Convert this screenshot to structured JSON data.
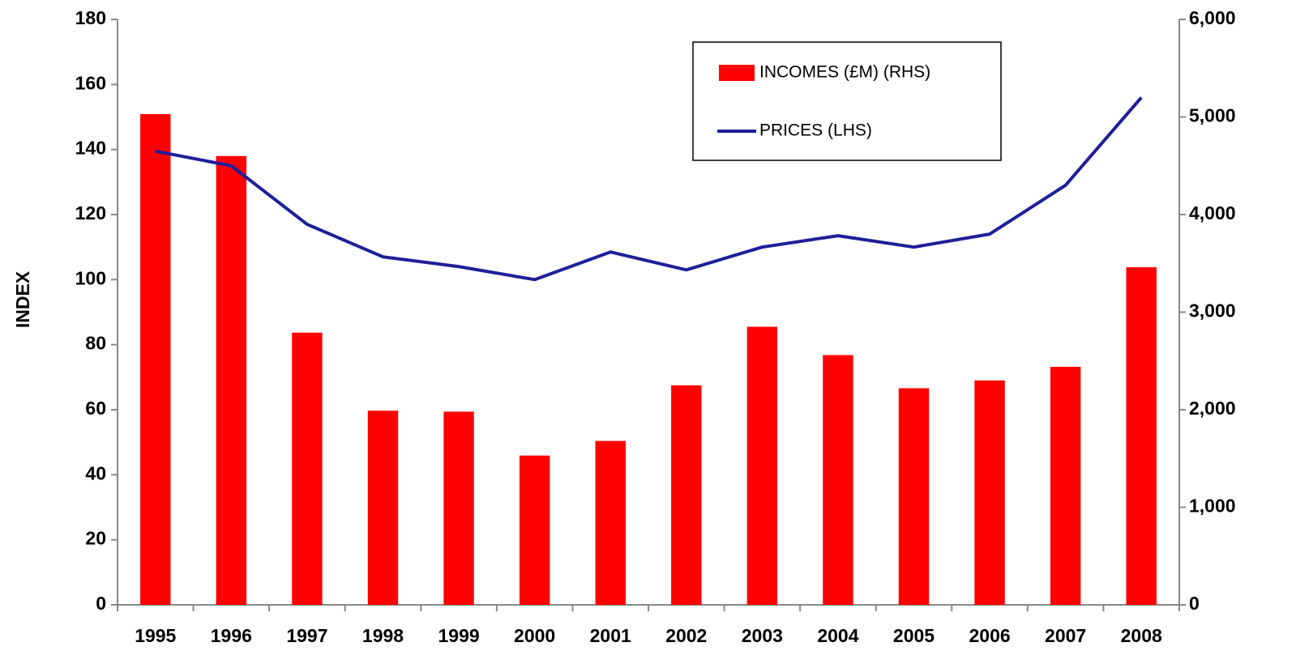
{
  "chart_data": {
    "type": "bar_line",
    "categories": [
      "1995",
      "1996",
      "1997",
      "1998",
      "1999",
      "2000",
      "2001",
      "2002",
      "2003",
      "2004",
      "2005",
      "2006",
      "2007",
      "2008"
    ],
    "series": [
      {
        "name": "INCOMES (£M) (RHS)",
        "type": "bar",
        "axis": "y2",
        "color": "#ff0000",
        "values": [
          5030,
          4600,
          2790,
          1990,
          1980,
          1530,
          1680,
          2250,
          2850,
          2560,
          2220,
          2300,
          2440,
          3460
        ]
      },
      {
        "name": "PRICES (LHS)",
        "type": "line",
        "axis": "y",
        "color": "#1f1f99",
        "values": [
          139.5,
          135,
          117,
          107,
          104,
          100,
          108.5,
          103,
          110,
          113.5,
          110,
          114,
          129,
          156
        ]
      }
    ],
    "ylabel": "INDEX",
    "ylim": [
      0,
      180
    ],
    "yticks": [
      0,
      20,
      40,
      60,
      80,
      100,
      120,
      140,
      160,
      180
    ],
    "y2lim": [
      0,
      6000
    ],
    "y2ticks": [
      0,
      {
        "value": 1000,
        "label": "1,000"
      },
      {
        "value": 2000,
        "label": "2,000"
      },
      {
        "value": 3000,
        "label": "3,000"
      },
      {
        "value": 4000,
        "label": "4,000"
      },
      {
        "value": 5000,
        "label": "5,000"
      },
      {
        "value": 6000,
        "label": "6,000"
      }
    ],
    "grid": false,
    "legend": "upper right"
  }
}
